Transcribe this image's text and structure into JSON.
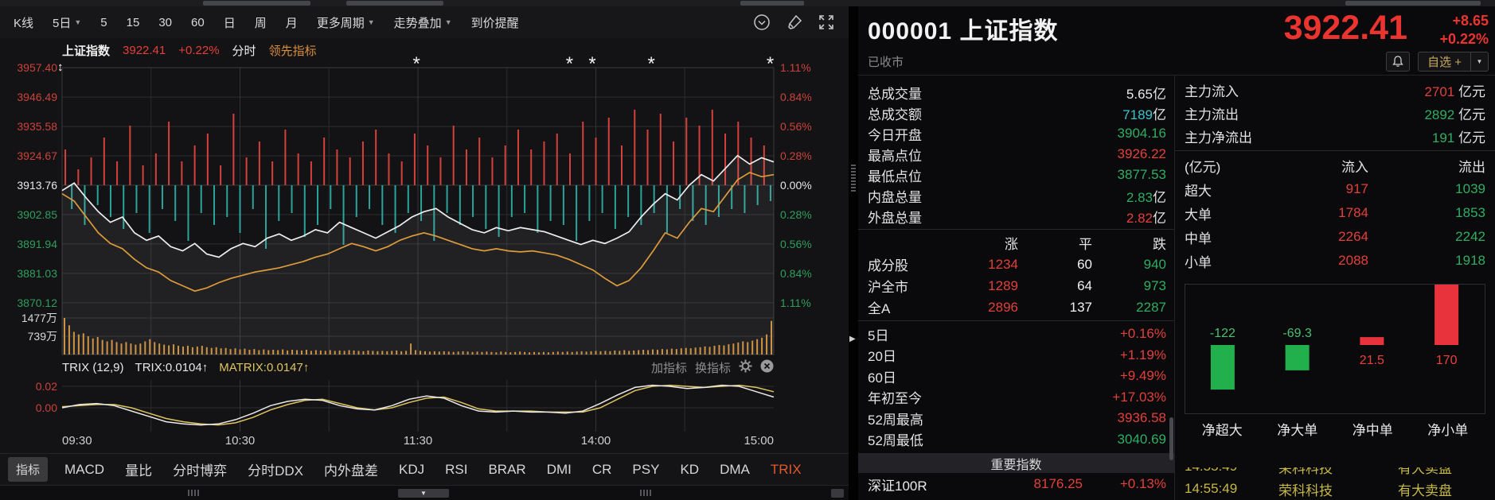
{
  "toolbar": {
    "items": [
      {
        "label": "K线",
        "dd": false
      },
      {
        "label": "5日",
        "dd": true
      },
      {
        "label": "5",
        "dd": false
      },
      {
        "label": "15",
        "dd": false
      },
      {
        "label": "30",
        "dd": false
      },
      {
        "label": "60",
        "dd": false
      },
      {
        "label": "日",
        "dd": false
      },
      {
        "label": "周",
        "dd": false
      },
      {
        "label": "月",
        "dd": false
      },
      {
        "label": "更多周期",
        "dd": true
      },
      {
        "label": "走势叠加",
        "dd": true
      },
      {
        "label": "到价提醒",
        "dd": false
      }
    ]
  },
  "legend": {
    "name": "上证指数",
    "price": "3922.41",
    "change": "+0.22%",
    "mode": "分时",
    "indicator": "领先指标"
  },
  "axes": {
    "price": [
      {
        "label": "3957.40",
        "color": "#cc423a"
      },
      {
        "label": "3946.49",
        "color": "#cc423a"
      },
      {
        "label": "3935.58",
        "color": "#cc423a"
      },
      {
        "label": "3924.67",
        "color": "#cc423a"
      },
      {
        "label": "3913.76",
        "color": "#e8e8e8"
      },
      {
        "label": "3902.85",
        "color": "#2f9e5c"
      },
      {
        "label": "3891.94",
        "color": "#2f9e5c"
      },
      {
        "label": "3881.03",
        "color": "#2f9e5c"
      },
      {
        "label": "3870.12",
        "color": "#2f9e5c"
      }
    ],
    "percent": [
      {
        "label": "1.11%",
        "color": "#cc423a"
      },
      {
        "label": "0.84%",
        "color": "#cc423a"
      },
      {
        "label": "0.56%",
        "color": "#cc423a"
      },
      {
        "label": "0.28%",
        "color": "#cc423a"
      },
      {
        "label": "0.00%",
        "color": "#e8e8e8"
      },
      {
        "label": "0.28%",
        "color": "#2f9e5c"
      },
      {
        "label": "0.56%",
        "color": "#2f9e5c"
      },
      {
        "label": "0.84%",
        "color": "#2f9e5c"
      },
      {
        "label": "1.11%",
        "color": "#2f9e5c"
      }
    ],
    "volume": [
      "1477万",
      "739万"
    ],
    "trix": [
      "0.02",
      "0.00"
    ],
    "time": [
      "09:30",
      "10:30",
      "11:30",
      "14:00",
      "15:00"
    ]
  },
  "trix_header": {
    "name": "TRIX (12,9)",
    "trix": "TRIX:0.0104↑",
    "matrix": "MATRIX:0.0147↑",
    "add": "加指标",
    "swap": "换指标"
  },
  "tabs": {
    "items": [
      "指标",
      "MACD",
      "量比",
      "分时博弈",
      "分时DDX",
      "内外盘差",
      "KDJ",
      "RSI",
      "BRAR",
      "DMI",
      "CR",
      "PSY",
      "KD",
      "DMA",
      "TRIX"
    ],
    "active": "TRIX"
  },
  "quote": {
    "code_name": "000001 上证指数",
    "price": "3922.41",
    "change": "+8.65",
    "change_pct": "+0.22%",
    "status": "已收市",
    "watch": "自选 +"
  },
  "stats": [
    {
      "label": "总成交量",
      "value": "5.65",
      "unit": "亿",
      "color": "#e8e8e8"
    },
    {
      "label": "总成交额",
      "value": "7189",
      "unit": "亿",
      "color": "#3fc3ca"
    },
    {
      "label": "今日开盘",
      "value": "3904.16",
      "unit": "",
      "color": "#2fae63"
    },
    {
      "label": "最高点位",
      "value": "3926.22",
      "unit": "",
      "color": "#e2403a"
    },
    {
      "label": "最低点位",
      "value": "3877.53",
      "unit": "",
      "color": "#2fae63"
    },
    {
      "label": "内盘总量",
      "value": "2.83",
      "unit": "亿",
      "color": "#2fae63"
    },
    {
      "label": "外盘总量",
      "value": "2.82",
      "unit": "亿",
      "color": "#e2403a"
    }
  ],
  "breadth": {
    "headers": [
      "",
      "涨",
      "平",
      "跌"
    ],
    "rows": [
      {
        "name": "成分股",
        "up": "1234",
        "flat": "60",
        "down": "940"
      },
      {
        "name": "沪全市",
        "up": "1289",
        "flat": "64",
        "down": "973"
      },
      {
        "name": "全A",
        "up": "2896",
        "flat": "137",
        "down": "2287"
      }
    ]
  },
  "ranges": [
    {
      "label": "5日",
      "value": "+0.16%",
      "color": "#e2403a"
    },
    {
      "label": "20日",
      "value": "+1.19%",
      "color": "#e2403a"
    },
    {
      "label": "60日",
      "value": "+9.49%",
      "color": "#e2403a"
    },
    {
      "label": "年初至今",
      "value": "+17.03%",
      "color": "#e2403a"
    },
    {
      "label": "52周最高",
      "value": "3936.58",
      "color": "#e2403a"
    },
    {
      "label": "52周最低",
      "value": "3040.69",
      "color": "#2fae63"
    }
  ],
  "important_index": {
    "title": "重要指数",
    "name": "深证100R",
    "value": "8176.25",
    "pct": "+0.13%"
  },
  "money_flow": {
    "rows": [
      {
        "label": "主力流入",
        "value": "2701",
        "unit": "亿元",
        "color": "#e2403a"
      },
      {
        "label": "主力流出",
        "value": "2892",
        "unit": "亿元",
        "color": "#2fae63"
      },
      {
        "label": "主力净流出",
        "value": "191",
        "unit": "亿元",
        "color": "#2fae63"
      }
    ],
    "table": {
      "headers": [
        "(亿元)",
        "流入",
        "流出"
      ],
      "rows": [
        {
          "name": "超大",
          "in": "917",
          "out": "1039"
        },
        {
          "name": "大单",
          "in": "1784",
          "out": "1853"
        },
        {
          "name": "中单",
          "in": "2264",
          "out": "2242"
        },
        {
          "name": "小单",
          "in": "2088",
          "out": "1918"
        }
      ]
    }
  },
  "ticker": {
    "time": "14:55:49",
    "stock": "荣科科技",
    "signal": "有大卖盘"
  },
  "colors": {
    "red": "#e2403a",
    "green": "#2fae63",
    "bar_red": "#d6403a",
    "bar_cyan": "#2ba39b",
    "price_line": "#eeeeee",
    "avg_line": "#dd9b3b",
    "vol_bar": "#cf8f3a",
    "trix_white": "#e9e9e9",
    "trix_yellow": "#dec45f"
  },
  "chart_data": {
    "type": "composite",
    "time_axis": [
      "09:30",
      "10:30",
      "11:30",
      "14:00",
      "15:00"
    ],
    "price_axis_range": [
      3870.12,
      3957.4
    ],
    "percent_axis_range": [
      -1.11,
      1.11
    ],
    "signal_marks": [
      0.498,
      0.713,
      0.745,
      0.828,
      0.995
    ],
    "price_pct": [
      -0.05,
      0.02,
      -0.12,
      -0.25,
      -0.35,
      -0.3,
      -0.45,
      -0.52,
      -0.48,
      -0.58,
      -0.62,
      -0.55,
      -0.65,
      -0.68,
      -0.6,
      -0.55,
      -0.58,
      -0.5,
      -0.46,
      -0.52,
      -0.48,
      -0.42,
      -0.45,
      -0.35,
      -0.4,
      -0.45,
      -0.5,
      -0.44,
      -0.38,
      -0.3,
      -0.25,
      -0.22,
      -0.3,
      -0.36,
      -0.42,
      -0.45,
      -0.4,
      -0.43,
      -0.4,
      -0.42,
      -0.44,
      -0.48,
      -0.52,
      -0.56,
      -0.52,
      -0.55,
      -0.5,
      -0.44,
      -0.3,
      -0.18,
      -0.08,
      -0.14,
      0.0,
      0.1,
      0.04,
      0.16,
      0.28,
      0.2,
      0.26,
      0.22
    ],
    "avg_pct": [
      -0.08,
      -0.15,
      -0.3,
      -0.45,
      -0.55,
      -0.6,
      -0.7,
      -0.78,
      -0.82,
      -0.9,
      -0.95,
      -1.0,
      -0.97,
      -0.92,
      -0.88,
      -0.85,
      -0.82,
      -0.8,
      -0.78,
      -0.75,
      -0.72,
      -0.68,
      -0.65,
      -0.6,
      -0.55,
      -0.58,
      -0.62,
      -0.58,
      -0.52,
      -0.48,
      -0.45,
      -0.48,
      -0.52,
      -0.56,
      -0.6,
      -0.62,
      -0.6,
      -0.62,
      -0.63,
      -0.62,
      -0.64,
      -0.66,
      -0.7,
      -0.75,
      -0.8,
      -0.88,
      -0.95,
      -0.9,
      -0.78,
      -0.62,
      -0.45,
      -0.5,
      -0.35,
      -0.22,
      -0.25,
      -0.1,
      0.05,
      0.12,
      0.08,
      0.1
    ],
    "delta": [
      0.45,
      -0.3,
      0.2,
      -0.5,
      0.35,
      -0.25,
      0.6,
      -0.4,
      0.3,
      -0.55,
      0.75,
      -0.35,
      0.25,
      -0.6,
      0.4,
      -0.3,
      0.8,
      -0.45,
      0.3,
      -0.7,
      0.5,
      -0.35,
      0.65,
      -0.5,
      0.25,
      -0.4,
      0.9,
      -0.6,
      0.35,
      -0.3,
      0.55,
      -0.8,
      0.3,
      -0.45,
      0.7,
      -0.35,
      0.4,
      -0.65,
      0.3,
      -0.5,
      0.6,
      -0.3,
      0.45,
      -0.75,
      0.35,
      -0.4,
      0.55,
      -0.3,
      0.7,
      -0.5,
      0.4,
      -0.6,
      0.3,
      -0.35,
      0.65,
      -0.45,
      0.5,
      -0.7,
      0.35,
      -0.35,
      0.75,
      -0.5,
      0.45,
      -0.4,
      0.6,
      -0.55,
      0.35,
      -0.65,
      0.5,
      -0.4,
      0.7,
      -0.35,
      0.45,
      -0.6,
      0.55,
      -0.45,
      0.65,
      -0.5,
      0.4,
      -0.7,
      0.8,
      -0.45,
      0.6,
      -0.35,
      0.85,
      -0.55,
      0.5,
      -0.4,
      0.95,
      -0.5,
      0.7,
      -0.35,
      0.9,
      -0.6,
      0.55,
      -0.3,
      0.85,
      -0.45,
      0.75,
      -0.5,
      0.95,
      -0.4,
      0.65,
      -0.3,
      0.8,
      -0.35,
      0.6,
      -0.25,
      0.5,
      -0.2
    ],
    "volume": [
      1.0,
      0.8,
      0.62,
      0.55,
      0.58,
      0.5,
      0.44,
      0.48,
      0.4,
      0.36,
      0.4,
      0.34,
      0.3,
      0.34,
      0.3,
      0.27,
      0.3,
      0.36,
      0.42,
      0.34,
      0.3,
      0.27,
      0.25,
      0.28,
      0.24,
      0.22,
      0.24,
      0.2,
      0.22,
      0.24,
      0.2,
      0.18,
      0.2,
      0.17,
      0.18,
      0.15,
      0.17,
      0.14,
      0.16,
      0.13,
      0.15,
      0.12,
      0.14,
      0.12,
      0.13,
      0.12,
      0.14,
      0.11,
      0.13,
      0.12,
      0.11,
      0.13,
      0.1,
      0.12,
      0.11,
      0.1,
      0.12,
      0.1,
      0.11,
      0.1,
      0.12,
      0.11,
      0.1,
      0.09,
      0.11,
      0.1,
      0.09,
      0.1,
      0.09,
      0.1,
      0.11,
      0.09,
      0.1,
      0.3,
      0.12,
      0.1,
      0.09,
      0.08,
      0.09,
      0.08,
      0.09,
      0.08,
      0.07,
      0.08,
      0.09,
      0.08,
      0.07,
      0.08,
      0.07,
      0.08,
      0.07,
      0.06,
      0.08,
      0.07,
      0.06,
      0.07,
      0.08,
      0.07,
      0.06,
      0.07,
      0.06,
      0.07,
      0.06,
      0.07,
      0.08,
      0.07,
      0.08,
      0.07,
      0.08,
      0.09,
      0.08,
      0.09,
      0.1,
      0.09,
      0.1,
      0.09,
      0.11,
      0.1,
      0.12,
      0.1,
      0.11,
      0.12,
      0.13,
      0.12,
      0.14,
      0.13,
      0.15,
      0.14,
      0.16,
      0.15,
      0.17,
      0.18,
      0.17,
      0.19,
      0.2,
      0.22,
      0.21,
      0.24,
      0.26,
      0.25,
      0.28,
      0.3,
      0.33,
      0.36,
      0.34,
      0.38,
      0.42,
      0.46,
      0.55,
      0.92
    ],
    "trix_white": [
      0.0,
      0.003,
      0.004,
      0.002,
      -0.003,
      -0.008,
      -0.013,
      -0.015,
      -0.016,
      -0.015,
      -0.011,
      -0.005,
      0.002,
      0.006,
      0.008,
      0.007,
      0.002,
      -0.001,
      -0.002,
      0.002,
      0.008,
      0.011,
      0.009,
      0.002,
      -0.003,
      -0.004,
      -0.003,
      -0.004,
      -0.004,
      -0.005,
      -0.003,
      0.004,
      0.012,
      0.019,
      0.021,
      0.02,
      0.018,
      0.019,
      0.021,
      0.02,
      0.015,
      0.01
    ],
    "trix_yellow": [
      0.001,
      0.002,
      0.003,
      0.003,
      0.0,
      -0.005,
      -0.01,
      -0.013,
      -0.015,
      -0.016,
      -0.014,
      -0.009,
      -0.002,
      0.003,
      0.007,
      0.008,
      0.004,
      0.0,
      -0.002,
      0.0,
      0.005,
      0.009,
      0.01,
      0.005,
      -0.001,
      -0.003,
      -0.003,
      -0.003,
      -0.004,
      -0.004,
      -0.004,
      0.0,
      0.008,
      0.016,
      0.02,
      0.021,
      0.02,
      0.019,
      0.02,
      0.021,
      0.019,
      0.015
    ],
    "net_flow": {
      "type": "bar",
      "unit": "亿元",
      "categories": [
        "净超大",
        "净大单",
        "净中单",
        "净小单"
      ],
      "values": [
        -122,
        -69.3,
        21.5,
        170
      ],
      "labels": [
        "-122",
        "-69.3",
        "21.5",
        "170"
      ]
    }
  }
}
